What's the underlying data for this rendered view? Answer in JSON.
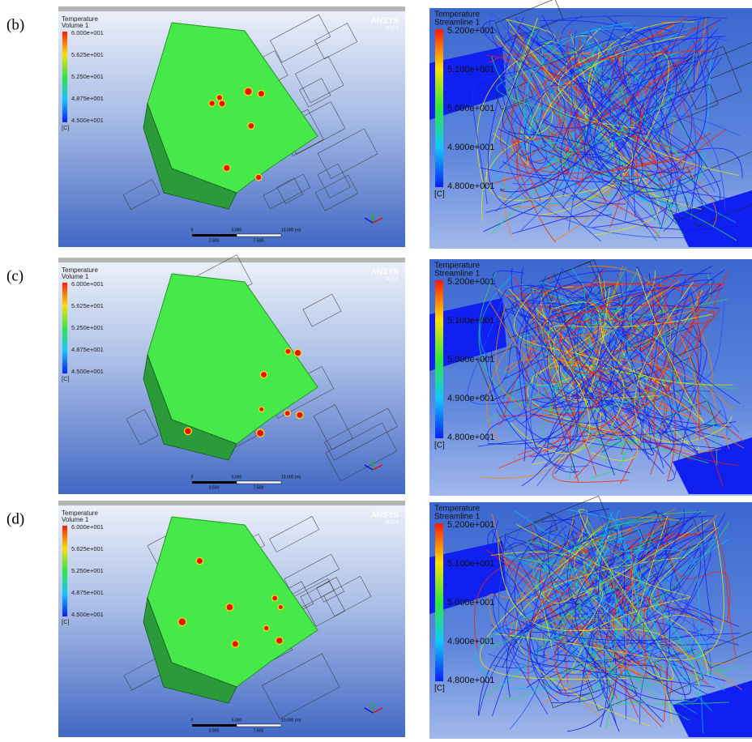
{
  "panels": [
    {
      "label": "(b)",
      "left": {
        "title": "Temperature",
        "subtitle": "Volume 1",
        "legend": [
          "6.000e+001",
          "5.625e+001",
          "5.250e+001",
          "4.875e+001",
          "4.500e+001"
        ],
        "unit": "[C]",
        "brand": "ANSYS",
        "version": "R15.0",
        "scale_top": [
          "0",
          "5.000",
          "10.000 (m)"
        ],
        "scale_bottom": [
          "2.500",
          "7.500"
        ]
      },
      "right": {
        "title": "Temperature",
        "subtitle": "Streamline 1",
        "legend": [
          "5.200e+001",
          "5.100e+001",
          "5.000e+001",
          "4.900e+001",
          "4.800e+001"
        ],
        "unit": "[C]"
      }
    },
    {
      "label": "(c)",
      "left": {
        "title": "Temperature",
        "subtitle": "Volume 1",
        "legend": [
          "6.000e+001",
          "5.625e+001",
          "5.250e+001",
          "4.875e+001",
          "4.500e+001"
        ],
        "unit": "[C]",
        "brand": "ANSYS",
        "version": "R15.0",
        "scale_top": [
          "0",
          "5.000",
          "10.000 (m)"
        ],
        "scale_bottom": [
          "2.500",
          "7.500"
        ]
      },
      "right": {
        "title": "Temperature",
        "subtitle": "Streamline 1",
        "legend": [
          "5.200e+001",
          "5.100e+001",
          "5.000e+001",
          "4.900e+001",
          "4.800e+001"
        ],
        "unit": "[C]"
      }
    },
    {
      "label": "(d)",
      "left": {
        "title": "Temperature",
        "subtitle": "Volume 1",
        "legend": [
          "6.000e+001",
          "5.625e+001",
          "5.250e+001",
          "4.875e+001",
          "4.500e+001"
        ],
        "unit": "[C]",
        "brand": "ANSYS",
        "version": "R15.0",
        "scale_top": [
          "0",
          "5.000",
          "10.000 (m)"
        ],
        "scale_bottom": [
          "2.500",
          "7.500"
        ]
      },
      "right": {
        "title": "Temperature",
        "subtitle": "Streamline 1",
        "legend": [
          "5.200e+001",
          "5.100e+001",
          "5.000e+001",
          "4.900e+001",
          "4.800e+001"
        ],
        "unit": "[C]"
      }
    }
  ]
}
